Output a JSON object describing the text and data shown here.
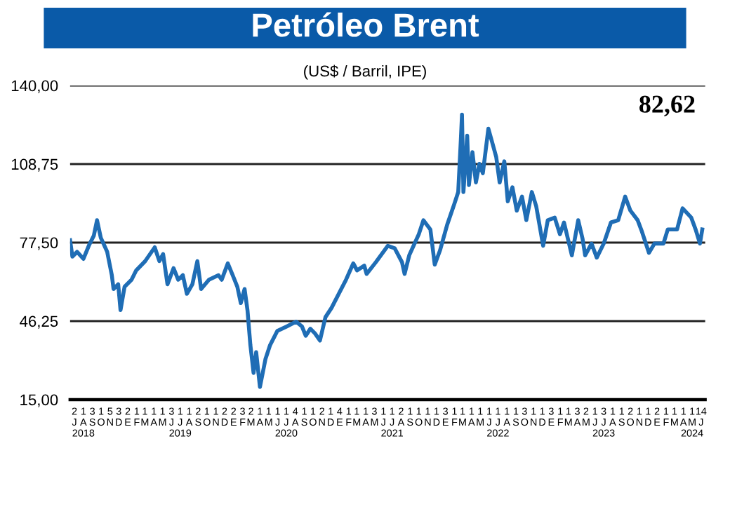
{
  "chart_data": {
    "type": "line",
    "title": "Petróleo Brent",
    "subtitle": "(US$ / Barril, IPE)",
    "annotations": [
      "82,62"
    ],
    "x": [
      "2018-07-01",
      "2018-07-09",
      "2018-07-25",
      "2018-08-16",
      "2018-09-05",
      "2018-09-21",
      "2018-10-02",
      "2018-10-15",
      "2018-11-06",
      "2018-11-22",
      "2018-11-28",
      "2018-12-14",
      "2018-12-22",
      "2019-01-05",
      "2019-01-29",
      "2019-02-14",
      "2019-03-17",
      "2019-04-19",
      "2019-05-05",
      "2019-05-18",
      "2019-06-02",
      "2019-06-23",
      "2019-07-09",
      "2019-07-25",
      "2019-08-08",
      "2019-08-27",
      "2019-09-13",
      "2019-09-26",
      "2019-10-23",
      "2019-11-25",
      "2019-12-06",
      "2019-12-27",
      "2020-01-13",
      "2020-01-29",
      "2020-02-10",
      "2020-02-23",
      "2020-03-04",
      "2020-03-14",
      "2020-03-25",
      "2020-04-03",
      "2020-04-16",
      "2020-05-05",
      "2020-05-21",
      "2020-06-15",
      "2020-07-17",
      "2020-08-19",
      "2020-09-08",
      "2020-09-21",
      "2020-10-07",
      "2020-10-23",
      "2020-11-09",
      "2020-11-28",
      "2020-12-19",
      "2021-01-13",
      "2021-02-07",
      "2021-03-04",
      "2021-03-17",
      "2021-04-11",
      "2021-04-19",
      "2021-05-21",
      "2021-07-01",
      "2021-07-25",
      "2021-08-19",
      "2021-08-28",
      "2021-09-13",
      "2021-10-16",
      "2021-11-01",
      "2021-11-25",
      "2021-12-10",
      "2021-12-28",
      "2022-01-22",
      "2022-02-16",
      "2022-03-01",
      "2022-03-10",
      "2022-03-14",
      "2022-03-19",
      "2022-04-01",
      "2022-04-07",
      "2022-04-19",
      "2022-05-01",
      "2022-05-13",
      "2022-05-25",
      "2022-06-13",
      "2022-06-22",
      "2022-07-10",
      "2022-07-22",
      "2022-08-07",
      "2022-08-19",
      "2022-09-04",
      "2022-09-19",
      "2022-10-07",
      "2022-10-22",
      "2022-11-10",
      "2022-11-25",
      "2022-12-19",
      "2023-01-04",
      "2023-01-28",
      "2023-02-15",
      "2023-03-01",
      "2023-03-28",
      "2023-04-19",
      "2023-05-04",
      "2023-05-13",
      "2023-06-04",
      "2023-06-22",
      "2023-07-16",
      "2023-08-10",
      "2023-09-04",
      "2023-09-28",
      "2023-10-16",
      "2023-11-10",
      "2023-11-25",
      "2023-12-19",
      "2024-01-07",
      "2024-02-07",
      "2024-02-22",
      "2024-03-25",
      "2024-04-13",
      "2024-05-13",
      "2024-05-28",
      "2024-06-12",
      "2024-06-20"
    ],
    "series": [
      {
        "color": "#1f6db5",
        "values": [
          78.4,
          71.9,
          73.8,
          71.0,
          76.6,
          80.3,
          86.4,
          79.4,
          73.8,
          64.5,
          59.0,
          60.9,
          50.6,
          59.9,
          62.7,
          66.4,
          70.1,
          75.6,
          70.1,
          72.9,
          60.9,
          67.3,
          62.7,
          64.5,
          57.1,
          60.9,
          70.1,
          59.0,
          62.7,
          64.5,
          62.7,
          69.2,
          64.5,
          59.9,
          53.4,
          59.0,
          50.6,
          36.7,
          25.6,
          33.9,
          20.0,
          31.1,
          36.7,
          42.3,
          44.1,
          46.0,
          44.1,
          40.4,
          43.2,
          41.3,
          38.5,
          47.8,
          51.5,
          57.1,
          62.7,
          69.2,
          66.4,
          68.3,
          65.0,
          69.7,
          76.2,
          75.2,
          69.7,
          65.0,
          72.4,
          80.8,
          86.4,
          82.7,
          68.7,
          74.3,
          84.6,
          93.0,
          97.6,
          118.2,
          128.4,
          97.6,
          120.0,
          100.4,
          113.5,
          101.4,
          108.8,
          105.1,
          122.8,
          119.1,
          111.6,
          101.4,
          109.8,
          93.9,
          99.5,
          90.2,
          95.8,
          86.4,
          97.6,
          92.0,
          76.2,
          86.4,
          87.4,
          80.8,
          85.5,
          72.4,
          86.4,
          79.0,
          72.4,
          77.1,
          71.5,
          77.1,
          85.5,
          86.4,
          95.8,
          90.2,
          86.4,
          81.8,
          73.4,
          77.1,
          77.1,
          82.7,
          82.7,
          91.1,
          87.4,
          82.7,
          77.1,
          82.7
        ]
      }
    ],
    "xlim": [
      "2018-07-01",
      "2024-06-30"
    ],
    "xticks": [
      {
        "value": "2018-07-16",
        "label": "2\nJ"
      },
      {
        "value": "2018-08-16",
        "label": "1\nA\n2018"
      },
      {
        "value": "2018-09-16",
        "label": "3\nS"
      },
      {
        "value": "2018-10-16",
        "label": "1\nO"
      },
      {
        "value": "2018-11-16",
        "label": "5\nN"
      },
      {
        "value": "2018-12-16",
        "label": "3\nD"
      },
      {
        "value": "2019-01-16",
        "label": "2\nE"
      },
      {
        "value": "2019-02-16",
        "label": "1\nF"
      },
      {
        "value": "2019-03-16",
        "label": "1\nM"
      },
      {
        "value": "2019-04-16",
        "label": "1\nA"
      },
      {
        "value": "2019-05-16",
        "label": "1\nM"
      },
      {
        "value": "2019-06-16",
        "label": "3\nJ"
      },
      {
        "value": "2019-07-16",
        "label": "1\nJ\n2019"
      },
      {
        "value": "2019-08-16",
        "label": "1\nA"
      },
      {
        "value": "2019-09-16",
        "label": "2\nS"
      },
      {
        "value": "2019-10-16",
        "label": "1\nO"
      },
      {
        "value": "2019-11-16",
        "label": "1\nN"
      },
      {
        "value": "2019-12-16",
        "label": "2\nD"
      },
      {
        "value": "2020-01-16",
        "label": "2\nE"
      },
      {
        "value": "2020-02-16",
        "label": "3\nF"
      },
      {
        "value": "2020-03-16",
        "label": "2\nM"
      },
      {
        "value": "2020-04-16",
        "label": "1\nA"
      },
      {
        "value": "2020-05-16",
        "label": "1\nM"
      },
      {
        "value": "2020-06-16",
        "label": "1\nJ"
      },
      {
        "value": "2020-07-16",
        "label": "1\nJ\n2020"
      },
      {
        "value": "2020-08-16",
        "label": "4\nA"
      },
      {
        "value": "2020-09-16",
        "label": "1\nS"
      },
      {
        "value": "2020-10-16",
        "label": "1\nO"
      },
      {
        "value": "2020-11-16",
        "label": "2\nN"
      },
      {
        "value": "2020-12-16",
        "label": "1\nD"
      },
      {
        "value": "2021-01-16",
        "label": "4\nE"
      },
      {
        "value": "2021-02-16",
        "label": "1\nF"
      },
      {
        "value": "2021-03-16",
        "label": "1\nM"
      },
      {
        "value": "2021-04-16",
        "label": "1\nA"
      },
      {
        "value": "2021-05-16",
        "label": "3\nM"
      },
      {
        "value": "2021-06-16",
        "label": "1\nJ"
      },
      {
        "value": "2021-07-16",
        "label": "1\nJ\n2021"
      },
      {
        "value": "2021-08-16",
        "label": "2\nA"
      },
      {
        "value": "2021-09-16",
        "label": "1\nS"
      },
      {
        "value": "2021-10-16",
        "label": "1\nO"
      },
      {
        "value": "2021-11-16",
        "label": "1\nN"
      },
      {
        "value": "2021-12-16",
        "label": "1\nD"
      },
      {
        "value": "2022-01-16",
        "label": "3\nE"
      },
      {
        "value": "2022-02-16",
        "label": "1\nF"
      },
      {
        "value": "2022-03-16",
        "label": "1\nM"
      },
      {
        "value": "2022-04-16",
        "label": "1\nA"
      },
      {
        "value": "2022-05-16",
        "label": "1\nM"
      },
      {
        "value": "2022-06-16",
        "label": "1\nJ"
      },
      {
        "value": "2022-07-16",
        "label": "1\nJ\n2022"
      },
      {
        "value": "2022-08-16",
        "label": "1\nA"
      },
      {
        "value": "2022-09-16",
        "label": "1\nS"
      },
      {
        "value": "2022-10-16",
        "label": "3\nO"
      },
      {
        "value": "2022-11-16",
        "label": "1\nN"
      },
      {
        "value": "2022-12-16",
        "label": "1\nD"
      },
      {
        "value": "2023-01-16",
        "label": "3\nE"
      },
      {
        "value": "2023-02-16",
        "label": "1\nF"
      },
      {
        "value": "2023-03-16",
        "label": "1\nM"
      },
      {
        "value": "2023-04-16",
        "label": "3\nA"
      },
      {
        "value": "2023-05-16",
        "label": "2\nM"
      },
      {
        "value": "2023-06-16",
        "label": "1\nJ"
      },
      {
        "value": "2023-07-16",
        "label": "3\nJ\n2023"
      },
      {
        "value": "2023-08-16",
        "label": "1\nA"
      },
      {
        "value": "2023-09-16",
        "label": "1\nS"
      },
      {
        "value": "2023-10-16",
        "label": "2\nO"
      },
      {
        "value": "2023-11-16",
        "label": "1\nN"
      },
      {
        "value": "2023-12-16",
        "label": "1\nD"
      },
      {
        "value": "2024-01-16",
        "label": "2\nE"
      },
      {
        "value": "2024-02-16",
        "label": "1\nF"
      },
      {
        "value": "2024-03-16",
        "label": "1\nM"
      },
      {
        "value": "2024-04-16",
        "label": "1\nA"
      },
      {
        "value": "2024-05-16",
        "label": "1\nM\n2024"
      },
      {
        "value": "2024-06-16",
        "label": "14\nJ"
      }
    ],
    "ylim": [
      15,
      140
    ],
    "yticks": [
      {
        "value": 15,
        "label": "15,00"
      },
      {
        "value": 46.25,
        "label": "46,25"
      },
      {
        "value": 77.5,
        "label": "77,50"
      },
      {
        "value": 108.75,
        "label": "108,75"
      },
      {
        "value": 140,
        "label": "140,00"
      }
    ],
    "grid": "y",
    "marker": "none",
    "line_style": "solid"
  }
}
